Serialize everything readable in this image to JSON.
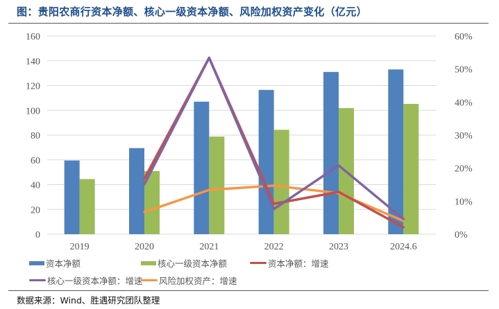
{
  "header": {
    "title": "图：贵阳农商行资本净额、核心一级资本净额、风险加权资产变化（亿元）"
  },
  "footer": {
    "source": "数据来源：Wind、胜遇研究团队整理"
  },
  "chart_data": {
    "type": "bar+line",
    "title": "贵阳农商行资本净额、核心一级资本净额、风险加权资产变化（亿元）",
    "categories": [
      "2019",
      "2020",
      "2021",
      "2022",
      "2023",
      "2024.6"
    ],
    "left_axis": {
      "label": "",
      "ylim": [
        0,
        160
      ],
      "ticks": [
        "0",
        "20",
        "40",
        "60",
        "80",
        "100",
        "120",
        "140",
        "160"
      ],
      "tick_values": [
        0,
        20,
        40,
        60,
        80,
        100,
        120,
        140,
        160
      ]
    },
    "right_axis": {
      "label": "",
      "ylim": [
        0,
        60
      ],
      "ticks": [
        "0%",
        "10%",
        "20%",
        "30%",
        "40%",
        "50%",
        "60%"
      ],
      "tick_values": [
        0,
        10,
        20,
        30,
        40,
        50,
        60
      ]
    },
    "grid": true,
    "legend_position": "bottom",
    "series": [
      {
        "name": "资本净额",
        "type": "bar",
        "axis": "left",
        "color": "#4f81bd",
        "values": [
          59.5,
          69.5,
          107.0,
          116.5,
          131.0,
          133.0
        ]
      },
      {
        "name": "核心一级资本净额",
        "type": "bar",
        "axis": "left",
        "color": "#9bbb59",
        "values": [
          44.5,
          51.0,
          78.8,
          84.3,
          101.8,
          105.2
        ]
      },
      {
        "name": "资本净额：增速",
        "type": "line",
        "axis": "right",
        "color": "#c0504d",
        "unit": "%",
        "values": [
          null,
          16.8,
          53.4,
          9.2,
          12.8,
          2.1
        ]
      },
      {
        "name": "核心一级资本净额：增速",
        "type": "line",
        "axis": "right",
        "color": "#8064a2",
        "unit": "%",
        "values": [
          null,
          15.1,
          53.4,
          7.6,
          20.8,
          4.6
        ]
      },
      {
        "name": "风险加权资产：增速",
        "type": "line",
        "axis": "right",
        "color": "#f79646",
        "unit": "%",
        "values": [
          null,
          6.7,
          13.4,
          14.7,
          12.4,
          4.0
        ]
      }
    ]
  }
}
